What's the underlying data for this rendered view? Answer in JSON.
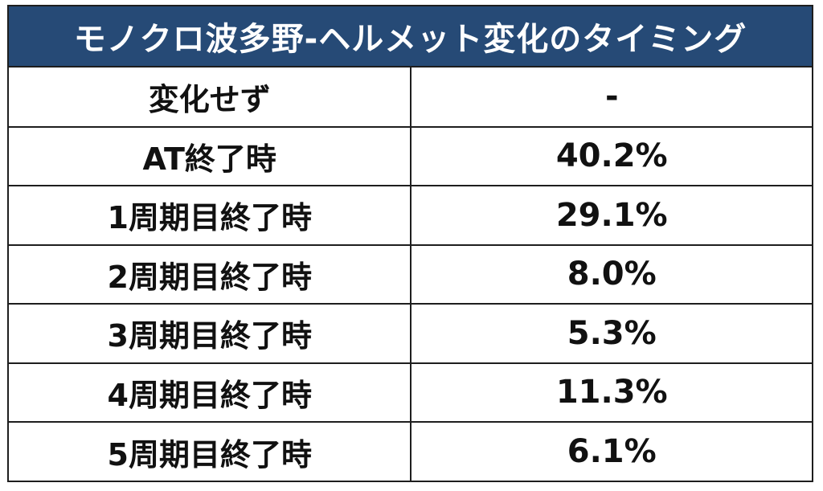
{
  "title": "モノクロ波多野-ヘルメット変化のタイミング",
  "rows": [
    {
      "label": "変化せず",
      "value": "-"
    },
    {
      "label": "AT終了時",
      "value": "40.2%"
    },
    {
      "label": "1周期目終了時",
      "value": "29.1%"
    },
    {
      "label": "2周期目終了時",
      "value": "8.0%"
    },
    {
      "label": "3周期目終了時",
      "value": "5.3%"
    },
    {
      "label": "4周期目終了時",
      "value": "11.3%"
    },
    {
      "label": "5周期目終了時",
      "value": "6.1%"
    }
  ],
  "colors": {
    "header_background": "#264a76",
    "header_text": "#ffffff",
    "border": "#1e1e1e",
    "body_text": "#111111"
  }
}
